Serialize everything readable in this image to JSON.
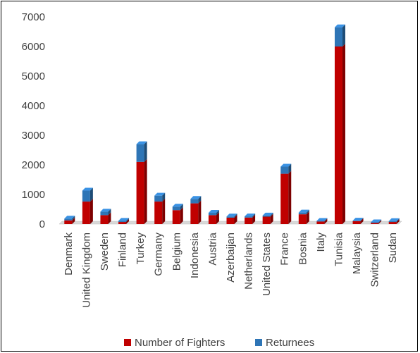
{
  "chart_data": {
    "type": "bar",
    "stacked": true,
    "style": "3d-stacked-column",
    "categories": [
      "Denmark",
      "United Kingdom",
      "Sweden",
      "Finland",
      "Turkey",
      "Germany",
      "Belgium",
      "Indonesia",
      "Austria",
      "Azerbaijan",
      "Netherlands",
      "United States",
      "France",
      "Bosnia",
      "Italy",
      "Tunisia",
      "Malaysia",
      "Switzerland",
      "Sudan"
    ],
    "series": [
      {
        "name": "Number of Fighters",
        "color": "#c00000",
        "values": [
          125,
          760,
          300,
          70,
          2100,
          760,
          470,
          700,
          300,
          216,
          220,
          250,
          1700,
          330,
          87,
          6000,
          100,
          40,
          70
        ]
      },
      {
        "name": "Returnees",
        "color": "#2e75b6",
        "values": [
          60,
          370,
          120,
          40,
          600,
          200,
          120,
          150,
          80,
          40,
          40,
          40,
          240,
          60,
          20,
          650,
          15,
          20,
          30
        ]
      }
    ],
    "ylim": [
      0,
      7000
    ],
    "yticks": [
      0,
      1000,
      2000,
      3000,
      4000,
      5000,
      6000,
      7000
    ],
    "grid": false,
    "legend": "bottom",
    "title": "",
    "xlabel": "",
    "ylabel": ""
  }
}
